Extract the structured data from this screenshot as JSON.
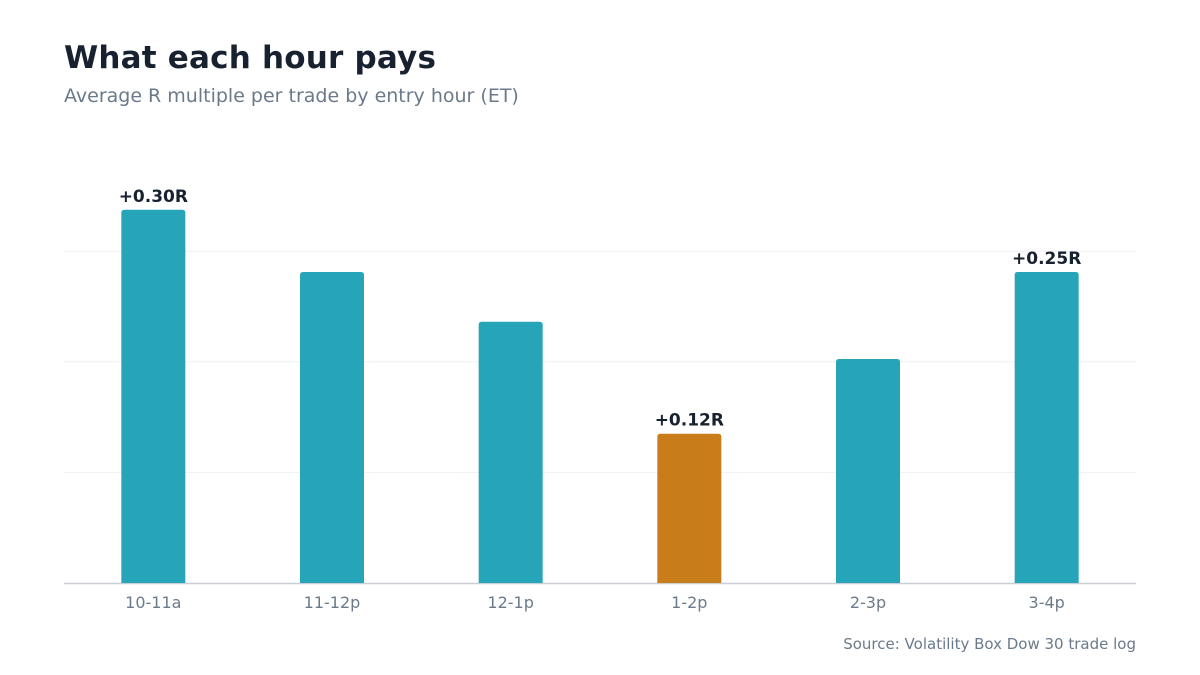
{
  "chart_data": {
    "type": "bar",
    "title": "What each hour pays",
    "subtitle": "Average R multiple per trade by entry hour (ET)",
    "categories": [
      "10-11a",
      "11-12p",
      "12-1p",
      "1-2p",
      "2-3p",
      "3-4p"
    ],
    "values": [
      0.3,
      0.25,
      0.21,
      0.12,
      0.18,
      0.25
    ],
    "value_labels": [
      "+0.30R",
      "",
      "",
      "+0.12R",
      "",
      "+0.25R"
    ],
    "highlight_index": 3,
    "ylim": [
      0,
      0.34
    ],
    "gridlines": [
      0.0,
      0.0889,
      0.1778,
      0.2667
    ],
    "grid": true,
    "xlabel": "",
    "ylabel": "",
    "colors": {
      "bar": "#27a5b8",
      "highlight": "#c87d1a",
      "grid": "#eef0f2",
      "axis": "#c9ced4",
      "tick_text": "#6b7a8a",
      "label_text": "#17212f"
    },
    "source": "Source: Volatility Box Dow 30 trade log"
  }
}
